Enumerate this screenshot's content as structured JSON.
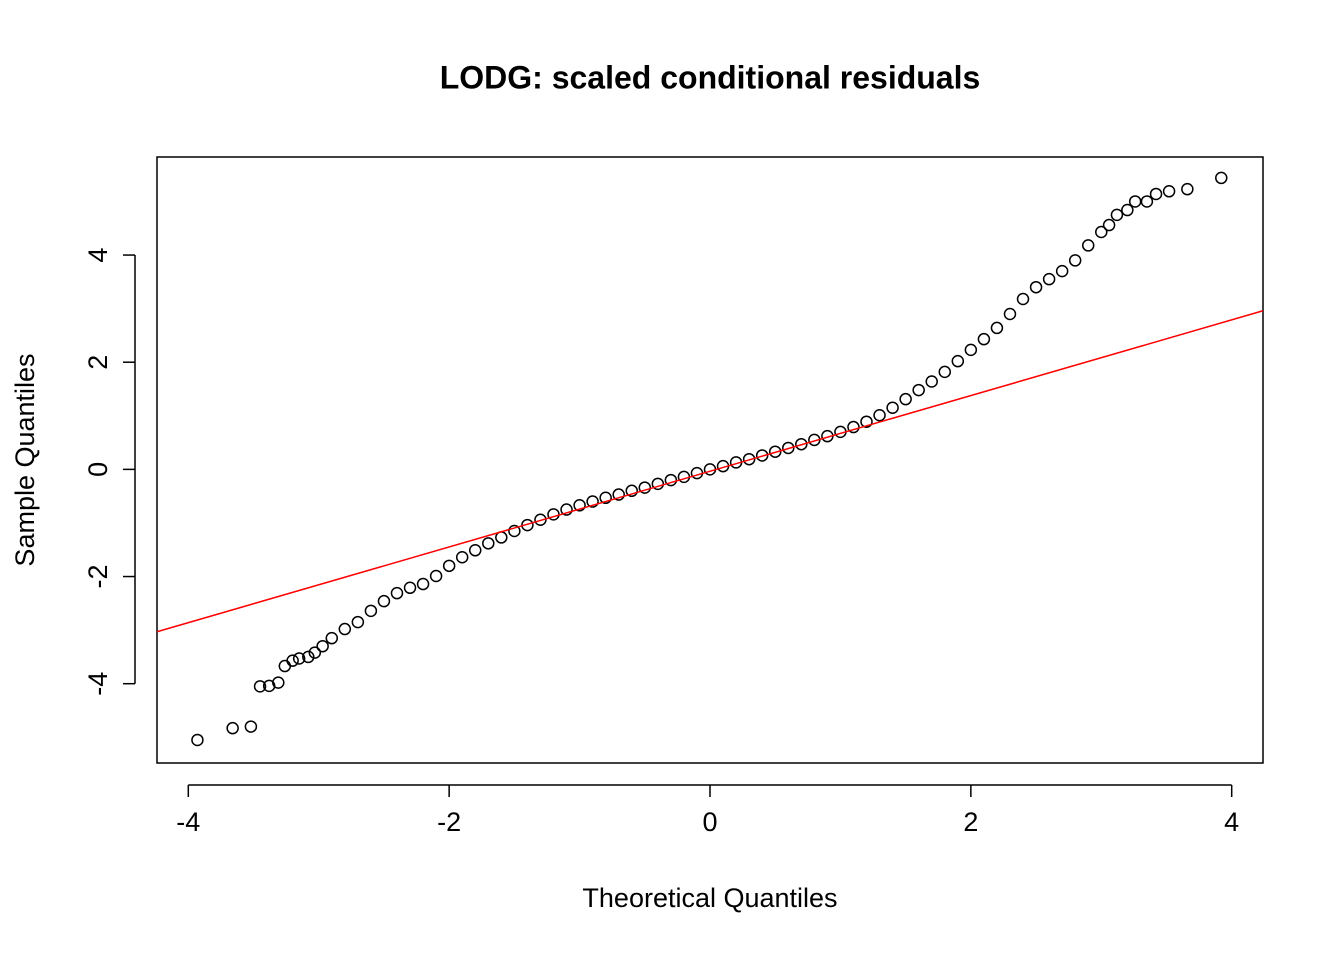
{
  "chart_data": {
    "type": "scatter",
    "title": "LODG: scaled conditional residuals",
    "x_label": "Theoretical Quantiles",
    "y_label": "Sample Quantiles",
    "xlim": [
      -4.24,
      4.24
    ],
    "ylim": [
      -5.48,
      5.83
    ],
    "xticks": [
      -4,
      -2,
      0,
      2,
      4
    ],
    "yticks": [
      -4,
      -2,
      0,
      2,
      4
    ],
    "grid": false,
    "color": "#000000",
    "x": [
      -3.93,
      -3.66,
      -3.52,
      -3.45,
      -3.38,
      -3.31,
      -3.26,
      -3.2,
      -3.15,
      -3.08,
      -3.03,
      -2.97,
      -2.9,
      -2.8,
      -2.7,
      -2.6,
      -2.5,
      -2.4,
      -2.3,
      -2.2,
      -2.1,
      -2.0,
      -1.9,
      -1.8,
      -1.7,
      -1.6,
      -1.5,
      -1.4,
      -1.3,
      -1.2,
      -1.1,
      -1.0,
      -0.9,
      -0.8,
      -0.7,
      -0.6,
      -0.5,
      -0.4,
      -0.3,
      -0.2,
      -0.1,
      0,
      0.1,
      0.2,
      0.3,
      0.4,
      0.5,
      0.6,
      0.7,
      0.8,
      0.9,
      1.0,
      1.1,
      1.2,
      1.3,
      1.4,
      1.5,
      1.6,
      1.7,
      1.8,
      1.9,
      2.0,
      2.1,
      2.2,
      2.3,
      2.4,
      2.5,
      2.6,
      2.7,
      2.8,
      2.9,
      3.0,
      3.06,
      3.12,
      3.2,
      3.26,
      3.35,
      3.42,
      3.52,
      3.66,
      3.92
    ],
    "y": [
      -5.05,
      -4.83,
      -4.8,
      -4.05,
      -4.04,
      -3.98,
      -3.67,
      -3.57,
      -3.53,
      -3.5,
      -3.42,
      -3.3,
      -3.15,
      -2.98,
      -2.85,
      -2.64,
      -2.46,
      -2.31,
      -2.21,
      -2.14,
      -1.99,
      -1.8,
      -1.64,
      -1.51,
      -1.38,
      -1.27,
      -1.15,
      -1.04,
      -0.94,
      -0.84,
      -0.75,
      -0.67,
      -0.6,
      -0.53,
      -0.47,
      -0.4,
      -0.34,
      -0.27,
      -0.2,
      -0.14,
      -0.07,
      0,
      0.06,
      0.13,
      0.19,
      0.26,
      0.33,
      0.4,
      0.47,
      0.55,
      0.62,
      0.7,
      0.79,
      0.89,
      1.01,
      1.15,
      1.31,
      1.48,
      1.64,
      1.82,
      2.02,
      2.23,
      2.43,
      2.64,
      2.9,
      3.18,
      3.4,
      3.55,
      3.7,
      3.9,
      4.18,
      4.43,
      4.56,
      4.75,
      4.84,
      5.0,
      5.0,
      5.14,
      5.19,
      5.23,
      5.44
    ],
    "reference_line": {
      "color": "#ff0000",
      "x": [
        -4.24,
        4.24
      ],
      "y": [
        -3.03,
        2.96
      ]
    }
  }
}
